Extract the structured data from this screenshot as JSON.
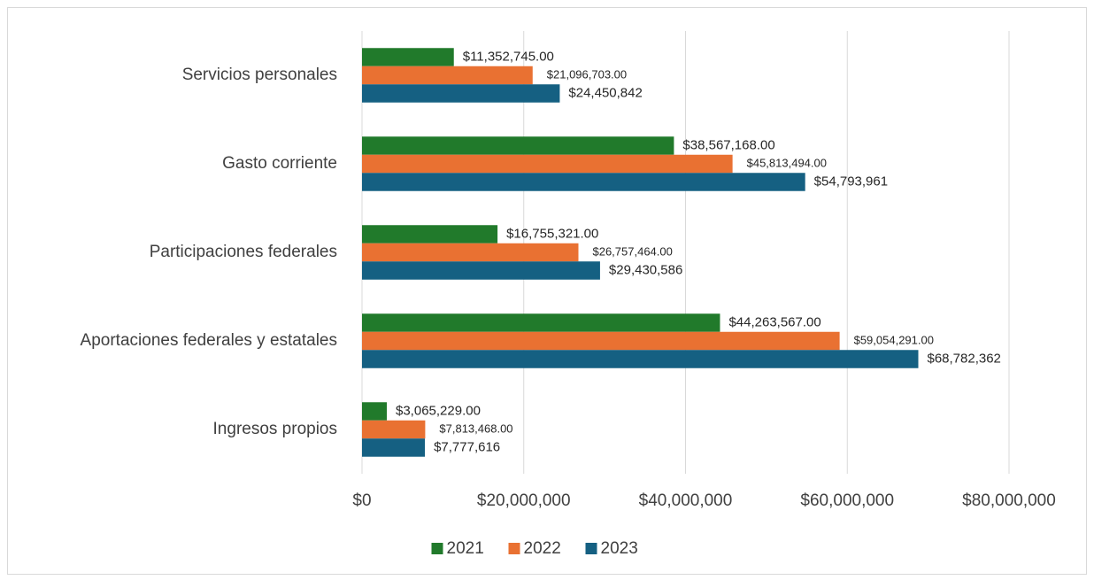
{
  "chart_data": {
    "type": "bar",
    "orientation": "horizontal",
    "categories": [
      "Servicios personales",
      "Gasto corriente",
      "Participaciones federales",
      "Aportaciones federales y estatales",
      "Ingresos propios"
    ],
    "series": [
      {
        "name": "2021",
        "color": "#217a2b",
        "values": [
          11352745,
          38567168,
          16755321,
          44263567,
          3065229
        ],
        "value_labels": [
          "$11,352,745.00",
          "$38,567,168.00",
          "$16,755,321.00",
          "$44,263,567.00",
          "$3,065,229.00"
        ]
      },
      {
        "name": "2022",
        "color": "#e97132",
        "values": [
          21096703,
          45813494,
          26757464,
          59054291,
          7813468
        ],
        "value_labels": [
          "$21,096,703.00",
          "$45,813,494.00",
          "$26,757,464.00",
          "$59,054,291.00",
          "$7,813,468.00"
        ]
      },
      {
        "name": "2023",
        "color": "#156082",
        "values": [
          24450842,
          54793961,
          29430586,
          68782362,
          7777616
        ],
        "value_labels": [
          "$24,450,842",
          "$54,793,961",
          "$29,430,586",
          "$68,782,362",
          "$7,777,616"
        ]
      }
    ],
    "xlim": [
      0,
      80000000
    ],
    "xticks": [
      {
        "value": 0,
        "label": "$0"
      },
      {
        "value": 20000000,
        "label": "$20,000,000"
      },
      {
        "value": 40000000,
        "label": "$40,000,000"
      },
      {
        "value": 60000000,
        "label": "$60,000,000"
      },
      {
        "value": 80000000,
        "label": "$80,000,000"
      }
    ],
    "grid": true,
    "legend": "bottom"
  }
}
